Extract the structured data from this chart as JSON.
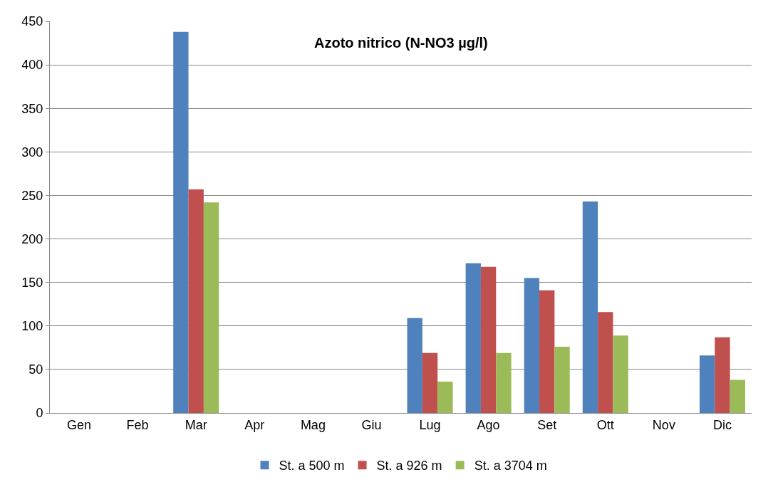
{
  "chart_data": {
    "type": "bar",
    "title": "Azoto nitrico (N-NO3 µg/l)",
    "categories": [
      "Gen",
      "Feb",
      "Mar",
      "Apr",
      "Mag",
      "Giu",
      "Lug",
      "Ago",
      "Set",
      "Ott",
      "Nov",
      "Dic"
    ],
    "series": [
      {
        "name": "St. a 500 m",
        "color": "#4f81bd",
        "values": [
          null,
          null,
          438,
          null,
          null,
          null,
          109,
          172,
          155,
          243,
          null,
          66
        ]
      },
      {
        "name": "St. a 926 m",
        "color": "#c0504d",
        "values": [
          null,
          null,
          257,
          null,
          null,
          null,
          69,
          168,
          141,
          116,
          null,
          87
        ]
      },
      {
        "name": "St. a 3704 m",
        "color": "#9bbb59",
        "values": [
          null,
          null,
          242,
          null,
          null,
          null,
          36,
          69,
          76,
          89,
          null,
          38
        ]
      }
    ],
    "ylim": [
      0,
      450
    ],
    "yticks": [
      0,
      50,
      100,
      150,
      200,
      250,
      300,
      350,
      400,
      450
    ],
    "grid": "y",
    "legend": "bottom"
  }
}
